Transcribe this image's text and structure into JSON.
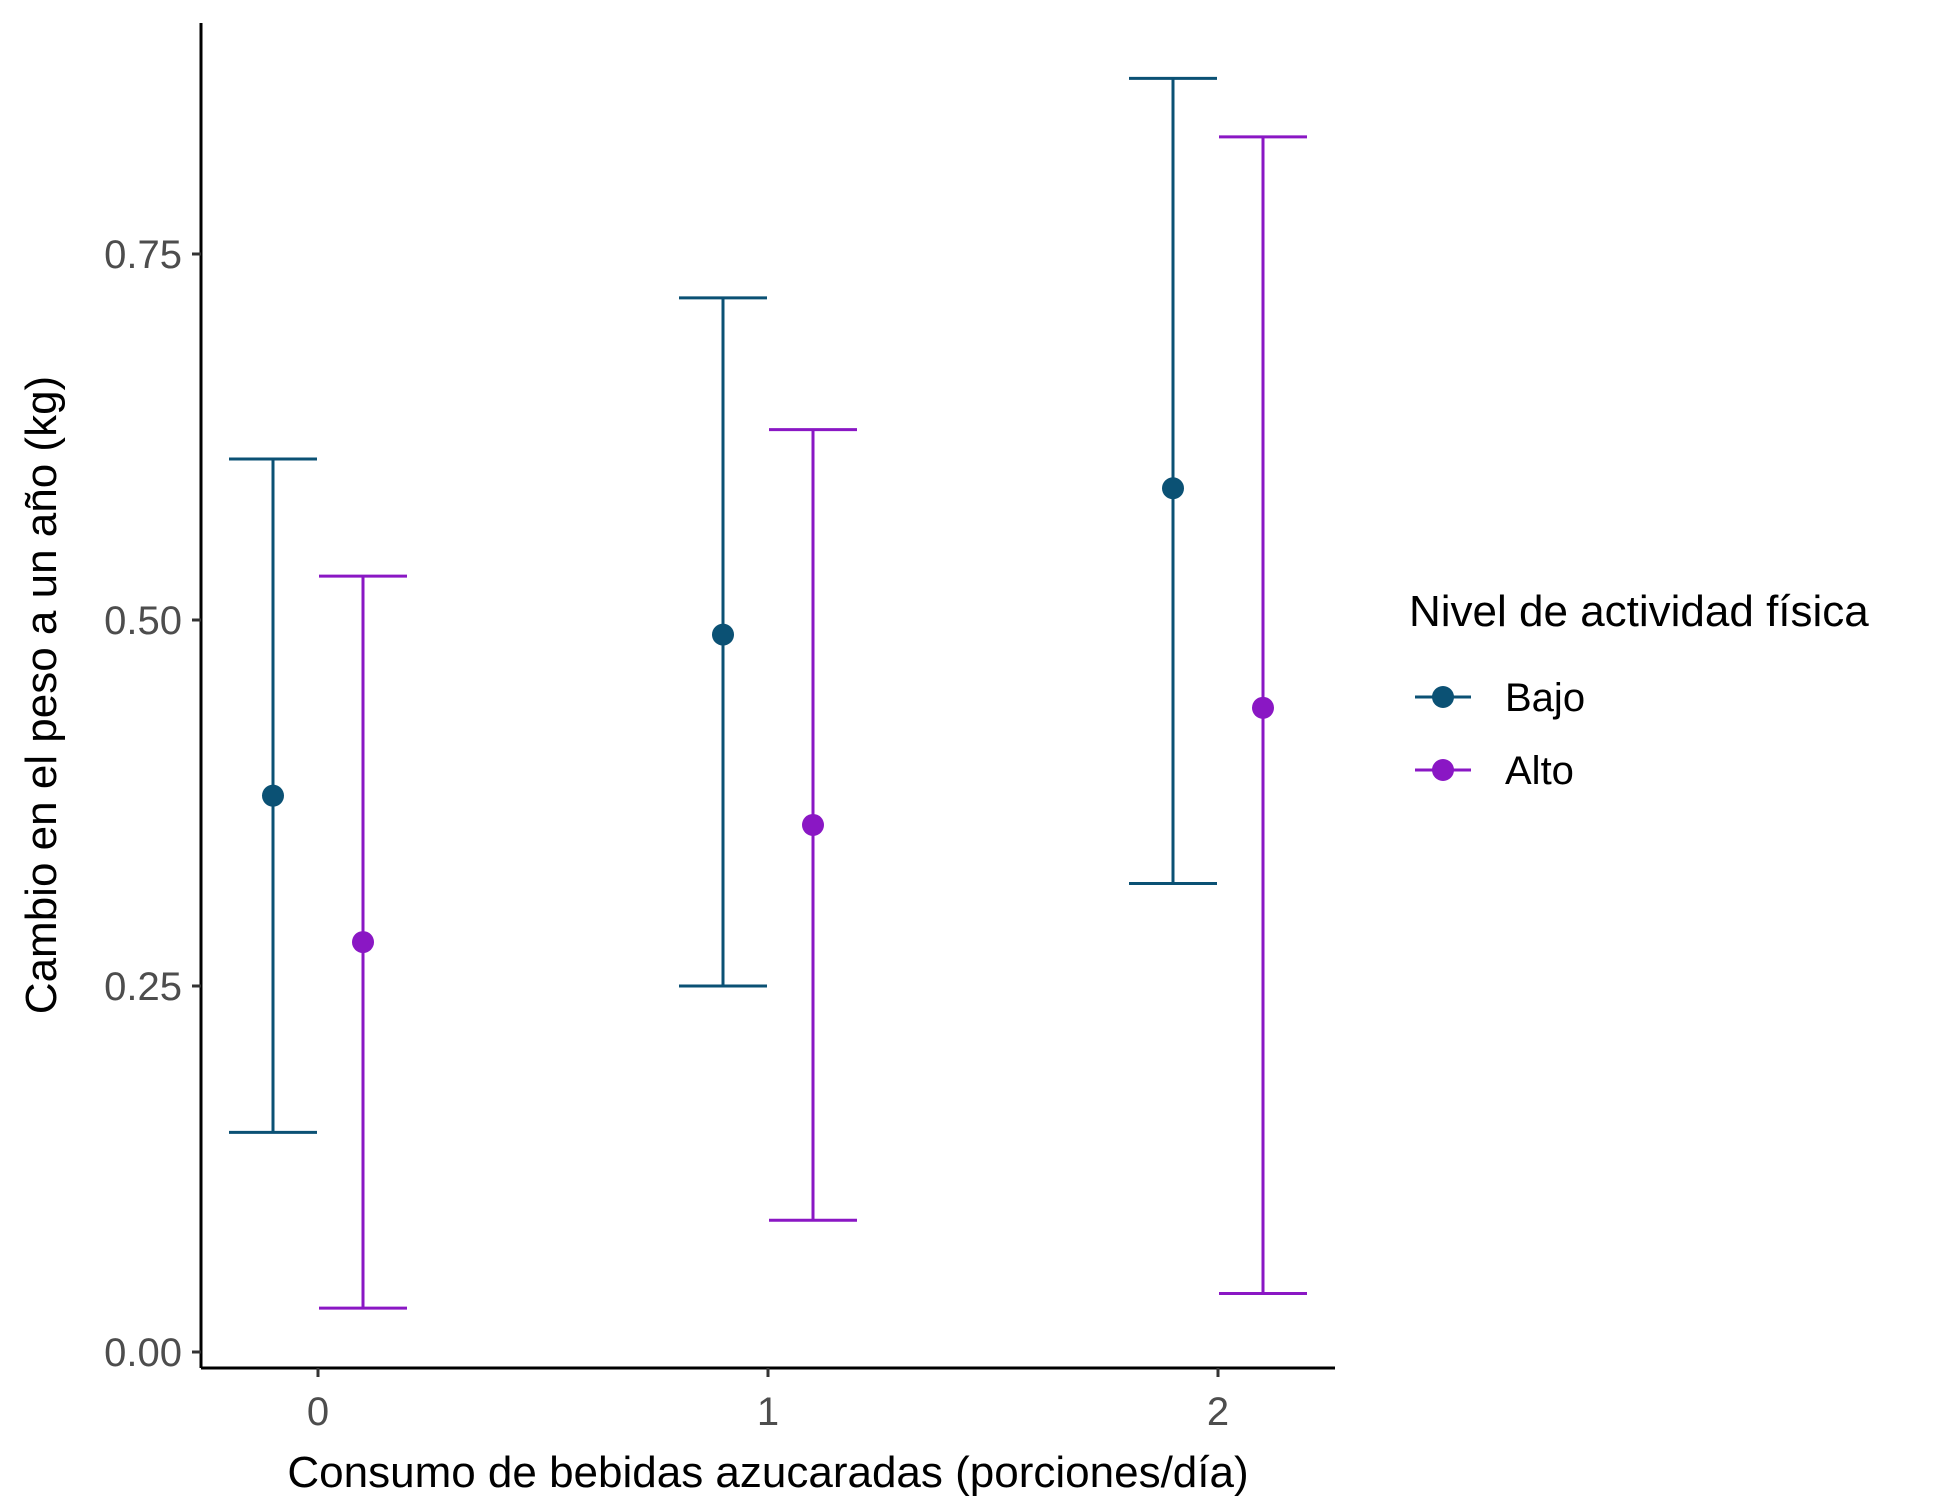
{
  "chart_data": {
    "type": "scatter",
    "categories": [
      "0",
      "1",
      "2"
    ],
    "x": [
      0,
      1,
      2
    ],
    "xlabel": "Consumo de bebidas azucaradas (porciones/día)",
    "ylabel": "Cambio en el peso a un año (kg)",
    "ylim": [
      0,
      0.9
    ],
    "yticks": [
      0,
      0.25,
      0.5,
      0.75
    ],
    "ytick_labels": [
      "0.00",
      "0.25",
      "0.50",
      "0.75"
    ],
    "grid": false,
    "legend": {
      "title": "Nivel de actividad física",
      "placement": "right"
    },
    "series": [
      {
        "name": "Bajo",
        "color": "#0b5174",
        "values": [
          0.38,
          0.49,
          0.59
        ],
        "lower": [
          0.15,
          0.25,
          0.32
        ],
        "upper": [
          0.61,
          0.72,
          0.87
        ]
      },
      {
        "name": "Alto",
        "color": "#8a17c4",
        "values": [
          0.28,
          0.36,
          0.44
        ],
        "lower": [
          0.03,
          0.09,
          0.04
        ],
        "upper": [
          0.53,
          0.63,
          0.83
        ]
      }
    ]
  }
}
